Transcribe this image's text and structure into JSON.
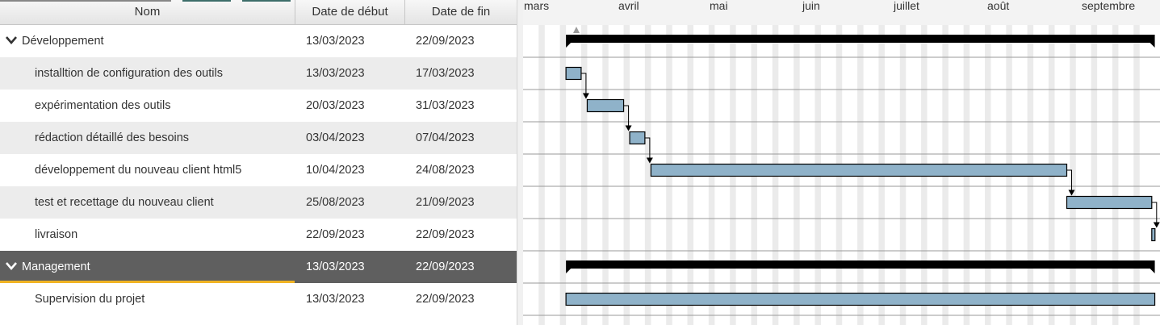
{
  "table": {
    "columns": {
      "name": "Nom",
      "start": "Date de début",
      "end": "Date de fin"
    },
    "rows": [
      {
        "name": "Développement",
        "start": "13/03/2023",
        "end": "22/09/2023",
        "group": true
      },
      {
        "name": "installtion de configuration des outils",
        "start": "13/03/2023",
        "end": "17/03/2023"
      },
      {
        "name": "expérimentation des outils",
        "start": "20/03/2023",
        "end": "31/03/2023"
      },
      {
        "name": "rédaction détaillé des besoins",
        "start": "03/04/2023",
        "end": "07/04/2023"
      },
      {
        "name": "développement du nouveau client html5",
        "start": "10/04/2023",
        "end": "24/08/2023"
      },
      {
        "name": "test et recettage du nouveau client",
        "start": "25/08/2023",
        "end": "21/09/2023"
      },
      {
        "name": "livraison",
        "start": "22/09/2023",
        "end": "22/09/2023"
      },
      {
        "name": "Management",
        "start": "13/03/2023",
        "end": "22/09/2023",
        "group": true,
        "selected": true
      },
      {
        "name": "Supervision du projet",
        "start": "13/03/2023",
        "end": "22/09/2023"
      }
    ]
  },
  "gantt": {
    "months": [
      "mars",
      "avril",
      "mai",
      "juin",
      "juillet",
      "août",
      "septembre"
    ],
    "start_date": "2023-03-01"
  },
  "colors": {
    "task_bar": "#8fb2c9",
    "group_bar": "#000000",
    "selection_underline": "#f0b323",
    "selected_row": "#5f5f5f",
    "alt_row": "#ececec",
    "weekend_stripe": "#ebebeb"
  },
  "icons": {
    "group_toggle": "chevron-down-icon",
    "today_marker": "triangle-up-icon"
  }
}
